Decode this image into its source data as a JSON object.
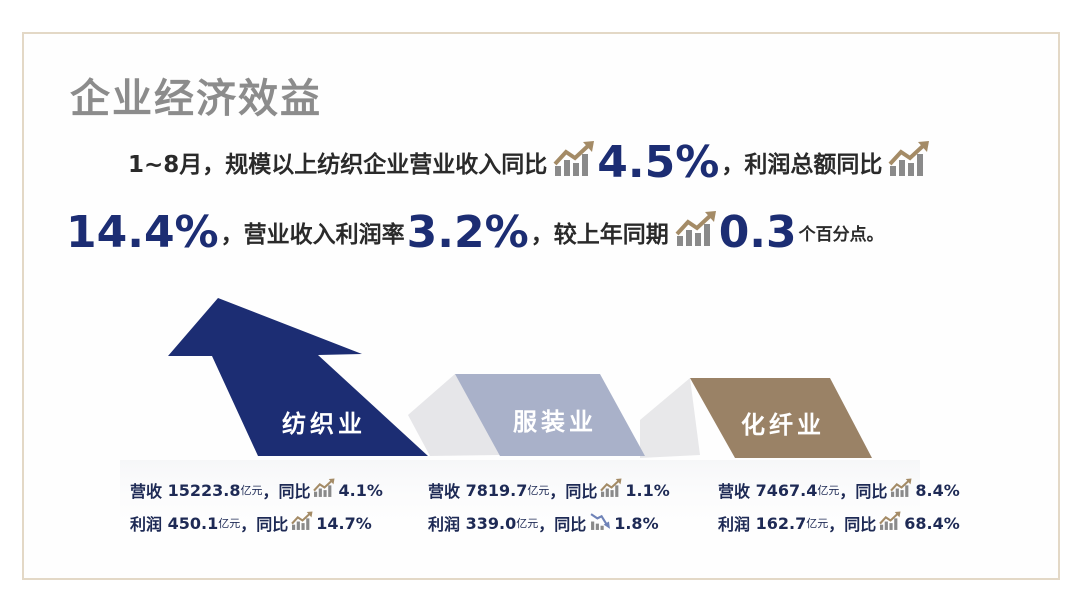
{
  "title": "企业经济效益",
  "summary": {
    "line1_prefix": "1~8月，规模以上纺织企业营业收入同比",
    "revenue_growth": "4.5%",
    "line1_mid": "，利润总额同比",
    "profit_growth": "14.4%",
    "line2_mid": "，营业收入利润率",
    "margin": "3.2%",
    "line2_mid2": "，较上年同期",
    "margin_change": "0.3",
    "margin_change_unit": "个百分点。"
  },
  "colors": {
    "navy": "#1c2d73",
    "lavender": "#a9b1c9",
    "gold": "#9a8266",
    "gray_connector": "#e4e4e6",
    "icon_gold": "#a48b66",
    "icon_gray": "#8a8a8a"
  },
  "segments": [
    {
      "name": "纺织业",
      "revenue_label": "营收",
      "revenue_value": "15223.8",
      "unit": "亿元",
      "yoy_label": "，同比",
      "revenue_yoy": "4.1%",
      "revenue_trend": "up-icon",
      "profit_label": "利润",
      "profit_value": "450.1",
      "profit_yoy": "14.7%",
      "profit_trend": "up-icon"
    },
    {
      "name": "服装业",
      "revenue_label": "营收",
      "revenue_value": "7819.7",
      "unit": "亿元",
      "yoy_label": "，同比",
      "revenue_yoy": "1.1%",
      "revenue_trend": "up-icon",
      "profit_label": "利润",
      "profit_value": "339.0",
      "profit_yoy": "1.8%",
      "profit_trend": "down-icon"
    },
    {
      "name": "化纤业",
      "revenue_label": "营收",
      "revenue_value": "7467.4",
      "unit": "亿元",
      "yoy_label": "，同比",
      "revenue_yoy": "8.4%",
      "revenue_trend": "up-icon",
      "profit_label": "利润",
      "profit_value": "162.7",
      "profit_yoy": "68.4%",
      "profit_trend": "up-icon"
    }
  ]
}
